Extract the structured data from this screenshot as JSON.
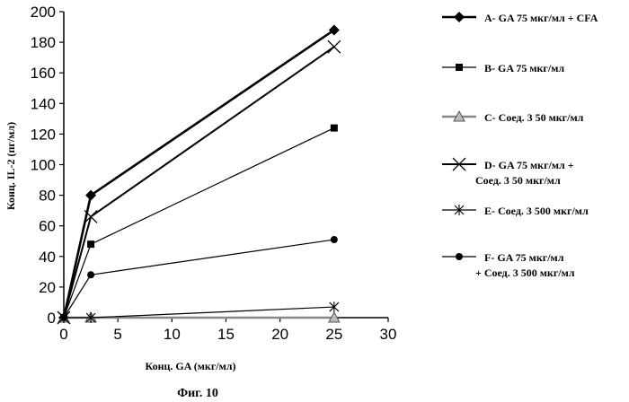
{
  "chart_data": {
    "type": "line",
    "x_label": "Конц. GA  (мкг/мл)",
    "y_label": "Конц. IL-2 (пг/мл)",
    "caption": "Фиг. 10",
    "xlim": [
      0,
      30
    ],
    "ylim": [
      0,
      200
    ],
    "x_ticks": [
      0,
      5,
      10,
      15,
      20,
      25,
      30
    ],
    "y_ticks": [
      0,
      20,
      40,
      60,
      80,
      100,
      120,
      140,
      160,
      180,
      200
    ],
    "grid": false,
    "legend_position": "right",
    "series": [
      {
        "name": "A- GA 75 мкг/мл + CFA",
        "marker": "diamond",
        "x": [
          0,
          2.5,
          25
        ],
        "y": [
          0,
          80,
          188
        ]
      },
      {
        "name": "B- GA 75 мкг/мл",
        "marker": "square",
        "x": [
          0,
          2.5,
          25
        ],
        "y": [
          0,
          48,
          124
        ]
      },
      {
        "name": "C- Соед. 3 50 мкг/мл",
        "marker": "triangle",
        "x": [
          0,
          2.5,
          25
        ],
        "y": [
          0,
          0,
          0
        ]
      },
      {
        "name": "D- GA 75 мкг/мл + Соед. 3 50 мкг/мл",
        "marker": "x",
        "x": [
          0,
          2.5,
          25
        ],
        "y": [
          0,
          66,
          177
        ]
      },
      {
        "name": "E- Соед. 3 500 мкг/мл",
        "marker": "asterisk",
        "x": [
          0,
          2.5,
          25
        ],
        "y": [
          0,
          0,
          7
        ]
      },
      {
        "name": "F- GA 75 мкг/мл + Соед. 3 500 мкг/мл",
        "marker": "circle",
        "x": [
          0,
          2.5,
          25
        ],
        "y": [
          0,
          28,
          51
        ]
      }
    ],
    "legend_lines": [
      [
        "A- GA 75 мкг/мл + CFA"
      ],
      [
        "B- GA 75 мкг/мл"
      ],
      [
        "C- Соед. 3 50 мкг/мл"
      ],
      [
        "D- GA 75 мкг/мл +",
        "Соед. 3 50 мкг/мл"
      ],
      [
        "E- Соед. 3 500 мкг/мл"
      ],
      [
        "F- GA 75 мкг/мл",
        "+ Соед. 3 500 мкг/мл"
      ]
    ]
  }
}
